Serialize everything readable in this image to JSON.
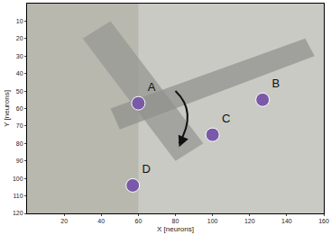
{
  "chart_data": {
    "type": "scatter",
    "xlabel": "X [neurons]",
    "ylabel": "Y [neurons]",
    "point_labels": [
      "A",
      "B",
      "C",
      "D"
    ],
    "x": [
      60,
      127,
      100,
      57
    ],
    "values": [
      57,
      55,
      75,
      104
    ],
    "color": "#7a5aa8",
    "marker": "circle",
    "xlim": [
      0,
      160
    ],
    "xticks": [
      20,
      40,
      60,
      80,
      100,
      120,
      140,
      160
    ],
    "ylim": [
      120,
      0
    ],
    "yticks": [
      10,
      20,
      30,
      40,
      50,
      60,
      70,
      80,
      90,
      100,
      110,
      120
    ],
    "grid": false
  }
}
